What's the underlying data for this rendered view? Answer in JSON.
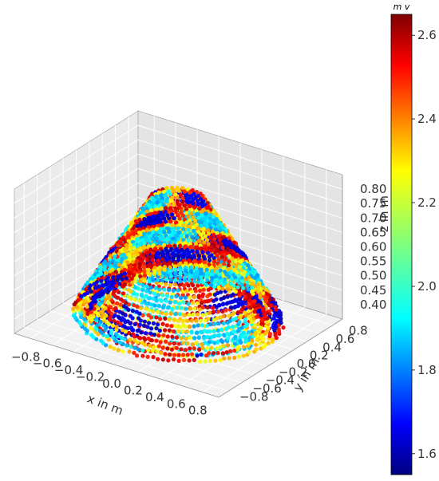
{
  "chart_data": {
    "type": "scatter",
    "projection": "3d",
    "title": "",
    "xlabel": "x in m",
    "ylabel": "y in m",
    "zlabel": "z in m",
    "xlim": [
      -0.95,
      0.95
    ],
    "ylim": [
      -0.95,
      0.95
    ],
    "zlim": [
      0.35,
      0.85
    ],
    "xticks": [
      "−0.8",
      "−0.6",
      "−0.4",
      "−0.2",
      "0.0",
      "0.2",
      "0.4",
      "0.6",
      "0.8"
    ],
    "yticks": [
      "−0.8",
      "−0.6",
      "−0.4",
      "−0.2",
      "0.0",
      "0.2",
      "0.4",
      "0.6",
      "0.8"
    ],
    "zticks": [
      "0.40",
      "0.45",
      "0.50",
      "0.55",
      "0.60",
      "0.65",
      "0.70",
      "0.75",
      "0.80"
    ],
    "grid": true,
    "colorbar": {
      "label": "m v",
      "colormap": "jet",
      "range": [
        1.55,
        2.65
      ],
      "ticks": [
        "1.6",
        "1.8",
        "2.0",
        "2.2",
        "2.4",
        "2.6"
      ],
      "tick_values": [
        1.6,
        1.8,
        2.0,
        2.2,
        2.4,
        2.6
      ]
    },
    "point_cloud": {
      "shape": "dome of helical layers",
      "z_base": 0.38,
      "z_top": 0.79,
      "radius_base": 0.82,
      "radius_top": 0.18,
      "value_range": [
        1.55,
        2.65
      ],
      "dominant_values": [
        1.6,
        1.9,
        2.25,
        2.5
      ]
    },
    "colors": {
      "pane": "#d9d9d9",
      "back_pane": "#cfcfcf",
      "grid": "#ffffff",
      "edge": "#9a9a9a"
    }
  }
}
